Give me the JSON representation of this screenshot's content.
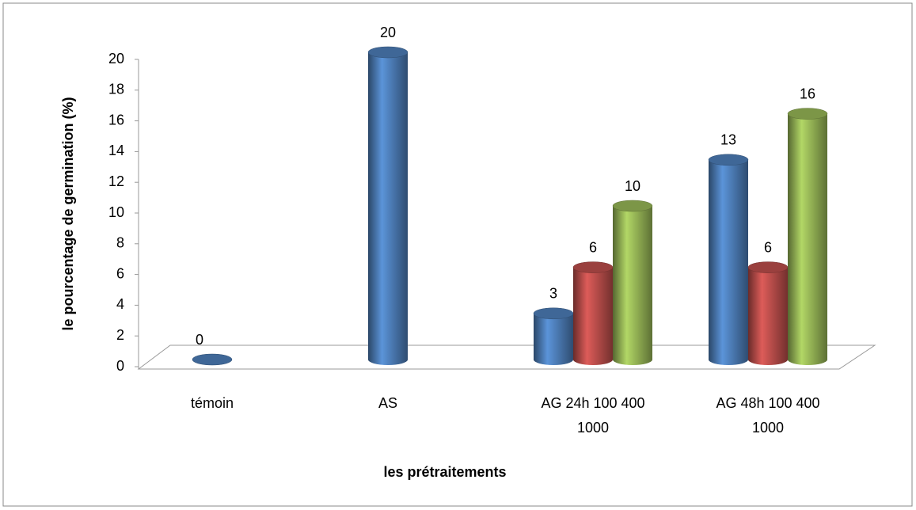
{
  "chart_data": {
    "type": "bar3d",
    "xlabel": "les prétraitements",
    "ylabel": "le pourcentage de germination (%)",
    "categories": [
      "témoin",
      "AS",
      "AG 24h 100 400 1000",
      "AG 48h 100 400 1000"
    ],
    "series": [
      {
        "color": "#4f81bd",
        "values": [
          0,
          20,
          3,
          13
        ]
      },
      {
        "color": "#c0504d",
        "values": [
          null,
          null,
          6,
          6
        ]
      },
      {
        "color": "#9bbb59",
        "values": [
          null,
          null,
          10,
          16
        ]
      }
    ],
    "ylim": [
      0,
      20
    ],
    "yticks": [
      0,
      2,
      4,
      6,
      8,
      10,
      12,
      14,
      16,
      18,
      20
    ]
  }
}
